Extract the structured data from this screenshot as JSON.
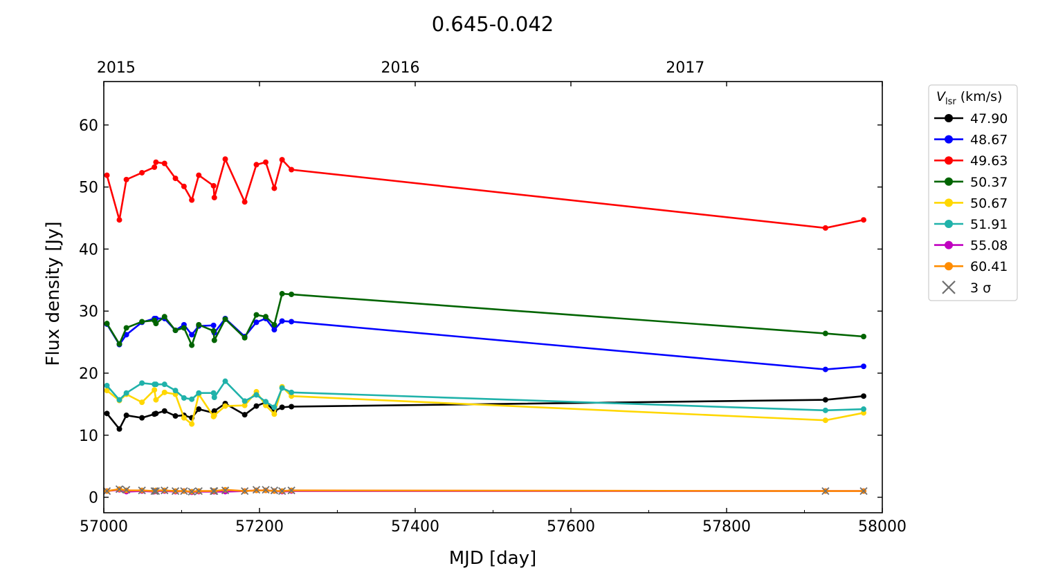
{
  "chart_data": {
    "type": "line",
    "title": "0.645-0.042",
    "xlabel": "MJD [day]",
    "ylabel": "Flux density [Jy]",
    "xlim": [
      57000,
      58000
    ],
    "ylim": [
      -2.5,
      67
    ],
    "xticks": [
      57000,
      57200,
      57400,
      57600,
      57800,
      58000
    ],
    "yticks": [
      0,
      10,
      20,
      30,
      40,
      50,
      60
    ],
    "top_axis": {
      "ticks": [
        {
          "label": "2015",
          "mjd": 57023
        },
        {
          "label": "2016",
          "mjd": 57388
        },
        {
          "label": "2017",
          "mjd": 57754
        }
      ]
    },
    "legend": {
      "title_main": "V",
      "title_sub": "lsr",
      "title_unit": " (km/s)",
      "placement": "outside-right",
      "sigma_label": "3 σ"
    },
    "x": [
      57004,
      57020,
      57029,
      57049,
      57065,
      57067,
      57078,
      57092,
      57103,
      57113,
      57122,
      57141,
      57142,
      57156,
      57181,
      57196,
      57208,
      57219,
      57229,
      57241,
      57927,
      57976
    ],
    "series": [
      {
        "name": "47.90",
        "color": "#000000",
        "values": [
          13.5,
          11.0,
          13.2,
          12.8,
          13.4,
          13.5,
          13.9,
          13.1,
          13.2,
          12.8,
          14.2,
          13.6,
          13.9,
          15.1,
          13.3,
          14.7,
          15.3,
          13.9,
          14.5,
          14.6,
          15.7,
          16.3
        ]
      },
      {
        "name": "48.67",
        "color": "#0000ff",
        "values": [
          27.9,
          24.6,
          26.2,
          28.2,
          28.8,
          28.8,
          28.8,
          26.9,
          27.8,
          26.2,
          27.6,
          27.7,
          26.5,
          28.8,
          25.9,
          28.2,
          28.8,
          27.0,
          28.4,
          28.3,
          20.6,
          21.1
        ]
      },
      {
        "name": "49.63",
        "color": "#ff0000",
        "values": [
          51.9,
          44.7,
          51.2,
          52.3,
          53.2,
          54.0,
          53.8,
          51.4,
          50.1,
          47.9,
          51.9,
          50.2,
          48.3,
          54.5,
          47.6,
          53.6,
          54.0,
          49.8,
          54.4,
          52.8,
          43.4,
          44.7
        ]
      },
      {
        "name": "50.37",
        "color": "#006400",
        "values": [
          28.0,
          24.7,
          27.3,
          28.3,
          28.5,
          28.0,
          29.1,
          26.9,
          27.3,
          24.5,
          27.8,
          26.8,
          25.3,
          28.7,
          25.7,
          29.4,
          29.1,
          27.8,
          32.8,
          32.7,
          26.4,
          25.9
        ]
      },
      {
        "name": "50.67",
        "color": "#ffd700",
        "values": [
          17.2,
          15.6,
          16.6,
          15.3,
          17.3,
          15.7,
          16.9,
          16.6,
          12.8,
          11.8,
          16.6,
          13.0,
          13.2,
          14.7,
          14.8,
          17.0,
          14.8,
          13.4,
          17.8,
          16.3,
          12.4,
          13.6
        ]
      },
      {
        "name": "51.91",
        "color": "#20b2aa",
        "values": [
          18.0,
          15.7,
          16.8,
          18.4,
          18.2,
          18.2,
          18.2,
          17.2,
          16.0,
          15.8,
          16.8,
          16.8,
          16.1,
          18.7,
          15.5,
          16.5,
          15.4,
          14.5,
          17.6,
          16.9,
          14.0,
          14.2
        ]
      },
      {
        "name": "55.08",
        "color": "#c000c0",
        "values": [
          1.0,
          1.2,
          0.9,
          1.0,
          0.9,
          1.0,
          1.0,
          0.9,
          1.0,
          0.8,
          0.9,
          0.9,
          0.9,
          0.9,
          1.0,
          1.1,
          1.1,
          1.0,
          0.9,
          1.0,
          1.0,
          1.0
        ]
      },
      {
        "name": "60.41",
        "color": "#ff8c00",
        "values": [
          1.0,
          1.3,
          1.1,
          1.1,
          1.0,
          1.1,
          1.1,
          1.0,
          1.0,
          0.9,
          1.0,
          1.0,
          1.0,
          1.2,
          1.0,
          1.1,
          1.1,
          1.0,
          1.0,
          1.1,
          1.0,
          1.0
        ]
      }
    ],
    "sigma3": {
      "name": "3 σ",
      "color": "#707070",
      "values": [
        1.0,
        1.3,
        1.2,
        1.1,
        1.0,
        1.0,
        1.1,
        1.0,
        1.0,
        0.9,
        1.0,
        1.0,
        1.0,
        1.1,
        1.0,
        1.2,
        1.2,
        1.1,
        1.0,
        1.1,
        1.0,
        1.0
      ]
    }
  }
}
